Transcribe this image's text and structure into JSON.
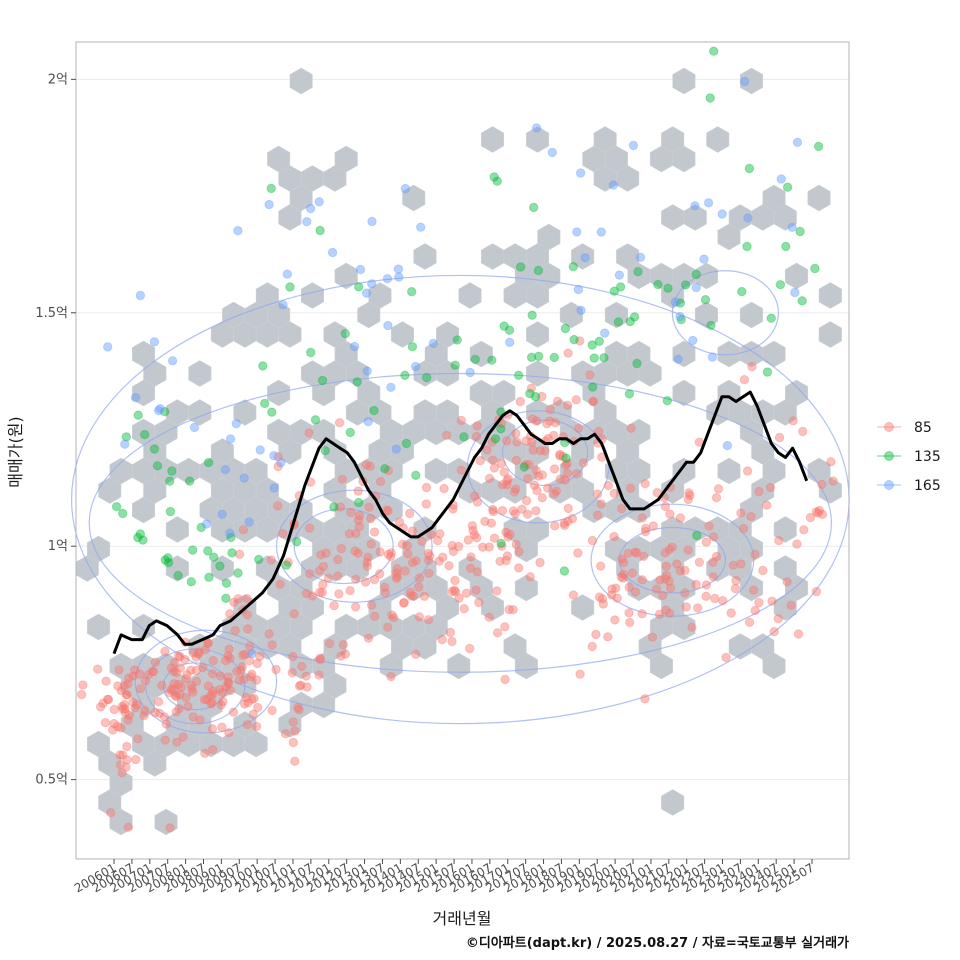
{
  "chart_data": {
    "type": "scatter",
    "title": "",
    "xlabel": "거래년월",
    "ylabel": "매매가(원)",
    "caption": "©디아파트(dapt.kr) / 2025.08.27 / 자료=국토교통부 실거래가",
    "x_range": [
      2006.0,
      2025.75
    ],
    "ylim": [
      0.33,
      2.08
    ],
    "y_ticks": [
      {
        "value": 0.5,
        "label": "0.5억"
      },
      {
        "value": 1.0,
        "label": "1억"
      },
      {
        "value": 1.5,
        "label": "1.5억"
      },
      {
        "value": 2.0,
        "label": "2억"
      }
    ],
    "x_ticks": [
      "200601",
      "200607",
      "200701",
      "200707",
      "200801",
      "200807",
      "200901",
      "200907",
      "201001",
      "201007",
      "201101",
      "201107",
      "201201",
      "201207",
      "201301",
      "201307",
      "201401",
      "201407",
      "201501",
      "201507",
      "201601",
      "201607",
      "201701",
      "201707",
      "201801",
      "201807",
      "201901",
      "201907",
      "202001",
      "202007",
      "202101",
      "202107",
      "202201",
      "202207",
      "202301",
      "202307",
      "202401",
      "202407",
      "202501",
      "202507"
    ],
    "legend": {
      "position": "right",
      "entries": [
        {
          "label": "85",
          "color": "#f8766d"
        },
        {
          "label": "135",
          "color": "#00ba38"
        },
        {
          "label": "165",
          "color": "#619cff"
        }
      ]
    },
    "trend_line": {
      "name": "moving average",
      "color": "#000000",
      "points": [
        [
          2006.0,
          0.77
        ],
        [
          2006.2,
          0.81
        ],
        [
          2006.5,
          0.8
        ],
        [
          2006.8,
          0.8
        ],
        [
          2007.0,
          0.83
        ],
        [
          2007.2,
          0.84
        ],
        [
          2007.5,
          0.83
        ],
        [
          2007.8,
          0.81
        ],
        [
          2008.0,
          0.79
        ],
        [
          2008.2,
          0.79
        ],
        [
          2008.5,
          0.8
        ],
        [
          2008.8,
          0.81
        ],
        [
          2009.0,
          0.83
        ],
        [
          2009.3,
          0.84
        ],
        [
          2009.6,
          0.86
        ],
        [
          2009.9,
          0.88
        ],
        [
          2010.2,
          0.9
        ],
        [
          2010.5,
          0.93
        ],
        [
          2010.8,
          0.98
        ],
        [
          2011.0,
          1.03
        ],
        [
          2011.2,
          1.08
        ],
        [
          2011.4,
          1.13
        ],
        [
          2011.6,
          1.17
        ],
        [
          2011.8,
          1.21
        ],
        [
          2012.0,
          1.23
        ],
        [
          2012.2,
          1.22
        ],
        [
          2012.4,
          1.21
        ],
        [
          2012.6,
          1.2
        ],
        [
          2012.8,
          1.18
        ],
        [
          2013.0,
          1.15
        ],
        [
          2013.2,
          1.12
        ],
        [
          2013.4,
          1.1
        ],
        [
          2013.6,
          1.07
        ],
        [
          2013.8,
          1.05
        ],
        [
          2014.0,
          1.04
        ],
        [
          2014.2,
          1.03
        ],
        [
          2014.4,
          1.02
        ],
        [
          2014.6,
          1.02
        ],
        [
          2014.8,
          1.03
        ],
        [
          2015.0,
          1.04
        ],
        [
          2015.2,
          1.06
        ],
        [
          2015.4,
          1.08
        ],
        [
          2015.6,
          1.1
        ],
        [
          2015.8,
          1.13
        ],
        [
          2016.0,
          1.16
        ],
        [
          2016.2,
          1.19
        ],
        [
          2016.4,
          1.21
        ],
        [
          2016.6,
          1.24
        ],
        [
          2016.8,
          1.26
        ],
        [
          2017.0,
          1.28
        ],
        [
          2017.2,
          1.29
        ],
        [
          2017.4,
          1.28
        ],
        [
          2017.6,
          1.26
        ],
        [
          2017.8,
          1.24
        ],
        [
          2018.0,
          1.23
        ],
        [
          2018.2,
          1.22
        ],
        [
          2018.4,
          1.22
        ],
        [
          2018.6,
          1.23
        ],
        [
          2018.8,
          1.23
        ],
        [
          2019.0,
          1.22
        ],
        [
          2019.2,
          1.23
        ],
        [
          2019.4,
          1.23
        ],
        [
          2019.6,
          1.24
        ],
        [
          2019.8,
          1.22
        ],
        [
          2020.0,
          1.18
        ],
        [
          2020.2,
          1.14
        ],
        [
          2020.4,
          1.1
        ],
        [
          2020.6,
          1.08
        ],
        [
          2020.8,
          1.08
        ],
        [
          2021.0,
          1.08
        ],
        [
          2021.2,
          1.09
        ],
        [
          2021.4,
          1.1
        ],
        [
          2021.6,
          1.12
        ],
        [
          2021.8,
          1.14
        ],
        [
          2022.0,
          1.16
        ],
        [
          2022.2,
          1.18
        ],
        [
          2022.4,
          1.18
        ],
        [
          2022.6,
          1.2
        ],
        [
          2022.8,
          1.24
        ],
        [
          2023.0,
          1.28
        ],
        [
          2023.2,
          1.32
        ],
        [
          2023.4,
          1.32
        ],
        [
          2023.6,
          1.31
        ],
        [
          2023.8,
          1.32
        ],
        [
          2024.0,
          1.33
        ],
        [
          2024.2,
          1.3
        ],
        [
          2024.4,
          1.26
        ],
        [
          2024.6,
          1.22
        ],
        [
          2024.8,
          1.2
        ],
        [
          2025.0,
          1.19
        ],
        [
          2025.2,
          1.21
        ],
        [
          2025.4,
          1.18
        ],
        [
          2025.6,
          1.14
        ]
      ]
    },
    "density_contours": [
      {
        "level": 1,
        "center": [
          2008.3,
          0.7
        ],
        "spread": [
          0.9,
          0.05
        ]
      },
      {
        "level": 2,
        "center": [
          2008.3,
          0.7
        ],
        "spread": [
          1.4,
          0.08
        ]
      },
      {
        "level": 3,
        "center": [
          2008.6,
          0.71
        ],
        "spread": [
          2.0,
          0.11
        ]
      },
      {
        "level": 1,
        "center": [
          2012.5,
          1.0
        ],
        "spread": [
          1.4,
          0.08
        ]
      },
      {
        "level": 2,
        "center": [
          2012.8,
          1.0
        ],
        "spread": [
          2.2,
          0.12
        ]
      },
      {
        "level": 1,
        "center": [
          2018.2,
          1.2
        ],
        "spread": [
          1.2,
          0.07
        ]
      },
      {
        "level": 2,
        "center": [
          2018.0,
          1.17
        ],
        "spread": [
          2.0,
          0.12
        ]
      },
      {
        "level": 1,
        "center": [
          2021.8,
          0.97
        ],
        "spread": [
          1.5,
          0.07
        ]
      },
      {
        "level": 2,
        "center": [
          2021.8,
          0.97
        ],
        "spread": [
          2.3,
          0.12
        ]
      },
      {
        "level": 1,
        "center": [
          2023.3,
          1.5
        ],
        "spread": [
          1.5,
          0.09
        ]
      },
      {
        "level": 4,
        "center": [
          2015.8,
          1.05
        ],
        "spread": [
          10.5,
          0.32
        ]
      },
      {
        "level": 5,
        "center": [
          2015.8,
          1.1
        ],
        "spread": [
          11.0,
          0.48
        ]
      }
    ],
    "hex_density": [
      {
        "center": [
          2006.0,
          0.56
        ],
        "spread": [
          0.4,
          0.06
        ],
        "count": 10
      },
      {
        "center": [
          2007.2,
          0.58
        ],
        "spread": [
          0.4,
          0.04
        ],
        "count": 6
      },
      {
        "center": [
          2006.2,
          0.42
        ],
        "spread": [
          0.1,
          0.01
        ],
        "count": 1
      },
      {
        "center": [
          2007.5,
          0.42
        ],
        "spread": [
          0.1,
          0.01
        ],
        "count": 1
      },
      {
        "center": [
          2008.5,
          0.7
        ],
        "spread": [
          1.6,
          0.08
        ],
        "count": 55
      },
      {
        "center": [
          2006.8,
          1.2
        ],
        "spread": [
          0.6,
          0.14
        ],
        "count": 18
      },
      {
        "center": [
          2008.5,
          1.15
        ],
        "spread": [
          1.0,
          0.16
        ],
        "count": 16
      },
      {
        "center": [
          2010.8,
          1.1
        ],
        "spread": [
          1.2,
          0.2
        ],
        "count": 22
      },
      {
        "center": [
          2012.5,
          1.0
        ],
        "spread": [
          1.5,
          0.15
        ],
        "count": 45
      },
      {
        "center": [
          2012.0,
          1.45
        ],
        "spread": [
          1.8,
          0.22
        ],
        "count": 30
      },
      {
        "center": [
          2015.2,
          0.92
        ],
        "spread": [
          1.3,
          0.08
        ],
        "count": 26
      },
      {
        "center": [
          2015.5,
          1.25
        ],
        "spread": [
          2.0,
          0.22
        ],
        "count": 34
      },
      {
        "center": [
          2018.3,
          1.18
        ],
        "spread": [
          1.5,
          0.1
        ],
        "count": 40
      },
      {
        "center": [
          2018.5,
          1.45
        ],
        "spread": [
          2.0,
          0.22
        ],
        "count": 36
      },
      {
        "center": [
          2021.8,
          0.95
        ],
        "spread": [
          1.6,
          0.1
        ],
        "count": 45
      },
      {
        "center": [
          2022.5,
          1.45
        ],
        "spread": [
          2.2,
          0.25
        ],
        "count": 36
      },
      {
        "center": [
          2024.8,
          1.05
        ],
        "spread": [
          0.8,
          0.15
        ],
        "count": 18
      },
      {
        "center": [
          2012.0,
          1.75
        ],
        "spread": [
          1.0,
          0.08
        ],
        "count": 5
      },
      {
        "center": [
          2023.5,
          1.8
        ],
        "spread": [
          1.2,
          0.12
        ],
        "count": 8
      },
      {
        "center": [
          2020.3,
          1.85
        ],
        "spread": [
          0.2,
          0.05
        ],
        "count": 2
      },
      {
        "center": [
          2023.8,
          1.99
        ],
        "spread": [
          0.1,
          0.01
        ],
        "count": 1
      }
    ],
    "series": [
      {
        "name": "85",
        "color": "#f8766d",
        "clusters": [
          {
            "center": [
              2006.2,
              0.6
            ],
            "spread": [
              0.3,
              0.08
            ],
            "count": 28
          },
          {
            "center": [
              2008.3,
              0.7
            ],
            "spread": [
              1.3,
              0.06
            ],
            "count": 130
          },
          {
            "center": [
              2010.5,
              0.78
            ],
            "spread": [
              0.9,
              0.09
            ],
            "count": 25
          },
          {
            "center": [
              2012.8,
              1.0
            ],
            "spread": [
              1.4,
              0.11
            ],
            "count": 95
          },
          {
            "center": [
              2015.2,
              0.93
            ],
            "spread": [
              1.2,
              0.08
            ],
            "count": 60
          },
          {
            "center": [
              2016.8,
              1.1
            ],
            "spread": [
              0.8,
              0.09
            ],
            "count": 35
          },
          {
            "center": [
              2018.3,
              1.18
            ],
            "spread": [
              1.1,
              0.09
            ],
            "count": 85
          },
          {
            "center": [
              2021.6,
              0.95
            ],
            "spread": [
              1.5,
              0.1
            ],
            "count": 100
          },
          {
            "center": [
              2024.8,
              1.05
            ],
            "spread": [
              0.7,
              0.14
            ],
            "count": 30
          },
          {
            "center": [
              2006.4,
              0.4
            ],
            "spread": [
              0.05,
              0.005
            ],
            "count": 1
          },
          {
            "center": [
              2007.6,
              0.4
            ],
            "spread": [
              0.05,
              0.005
            ],
            "count": 1
          },
          {
            "center": [
              2011.2,
              0.58
            ],
            "spread": [
              0.2,
              0.03
            ],
            "count": 3
          }
        ]
      },
      {
        "name": "135",
        "color": "#00ba38",
        "clusters": [
          {
            "center": [
              2006.9,
              1.15
            ],
            "spread": [
              0.5,
              0.12
            ],
            "count": 12
          },
          {
            "center": [
              2009.0,
              1.02
            ],
            "spread": [
              0.8,
              0.08
            ],
            "count": 22
          },
          {
            "center": [
              2011.8,
              1.35
            ],
            "spread": [
              1.0,
              0.18
            ],
            "count": 16
          },
          {
            "center": [
              2014.5,
              1.3
            ],
            "spread": [
              1.5,
              0.14
            ],
            "count": 14
          },
          {
            "center": [
              2017.5,
              1.4
            ],
            "spread": [
              1.3,
              0.2
            ],
            "count": 22
          },
          {
            "center": [
              2019.5,
              1.45
            ],
            "spread": [
              1.0,
              0.15
            ],
            "count": 14
          },
          {
            "center": [
              2023.5,
              1.55
            ],
            "spread": [
              1.6,
              0.18
            ],
            "count": 26
          }
        ]
      },
      {
        "name": "165",
        "color": "#619cff",
        "clusters": [
          {
            "center": [
              2006.7,
              1.35
            ],
            "spread": [
              0.5,
              0.08
            ],
            "count": 8
          },
          {
            "center": [
              2009.6,
              1.15
            ],
            "spread": [
              0.9,
              0.12
            ],
            "count": 14
          },
          {
            "center": [
              2012.3,
              1.6
            ],
            "spread": [
              1.2,
              0.15
            ],
            "count": 16
          },
          {
            "center": [
              2015.5,
              1.5
            ],
            "spread": [
              1.5,
              0.15
            ],
            "count": 12
          },
          {
            "center": [
              2019.8,
              1.65
            ],
            "spread": [
              1.3,
              0.15
            ],
            "count": 14
          },
          {
            "center": [
              2023.6,
              1.65
            ],
            "spread": [
              1.4,
              0.2
            ],
            "count": 16
          },
          {
            "center": [
              2023.8,
              1.99
            ],
            "spread": [
              0.05,
              0.005
            ],
            "count": 1
          }
        ]
      }
    ]
  }
}
